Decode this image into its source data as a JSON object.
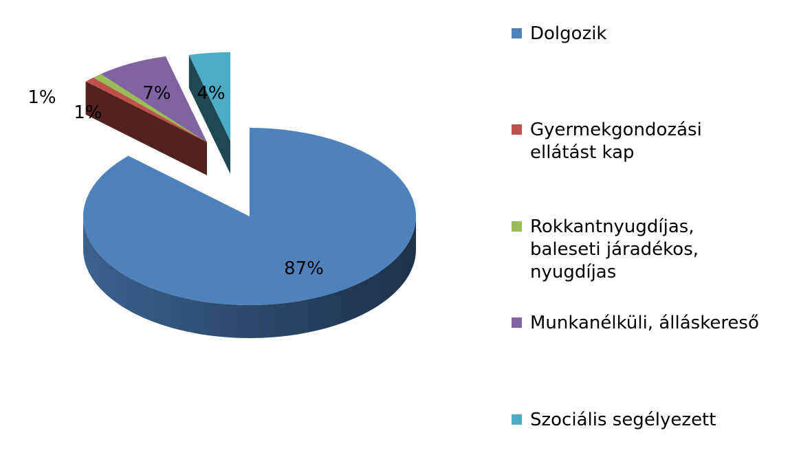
{
  "chart_data": {
    "type": "pie",
    "style": "3d-exploded",
    "title": "",
    "categories": [
      "Dolgozik",
      "Gyermekgondozási ellátást kap",
      "Rokkantnyugdíjas, baleseti járadékos, nyugdíjas",
      "Munkanélküli, álláskereső",
      "Szociális segélyezett"
    ],
    "values": [
      87,
      1,
      1,
      7,
      4
    ],
    "labels": [
      "87%",
      "1%",
      "1%",
      "7%",
      "4%"
    ],
    "colors": [
      "#4F81BD",
      "#C0504D",
      "#9BBB59",
      "#8064A2",
      "#4BACC6"
    ],
    "legend_position": "right",
    "legend": [
      {
        "lines": [
          "Dolgozik"
        ]
      },
      {
        "lines": [
          "Gyermekgondozási",
          "ellátást kap"
        ]
      },
      {
        "lines": [
          "Rokkantnyugdíjas,",
          "baleseti járadékos,",
          "nyugdíjas"
        ]
      },
      {
        "lines": [
          "Munkanélküli, álláskereső"
        ]
      },
      {
        "lines": [
          "Szociális segélyezett"
        ]
      }
    ]
  }
}
